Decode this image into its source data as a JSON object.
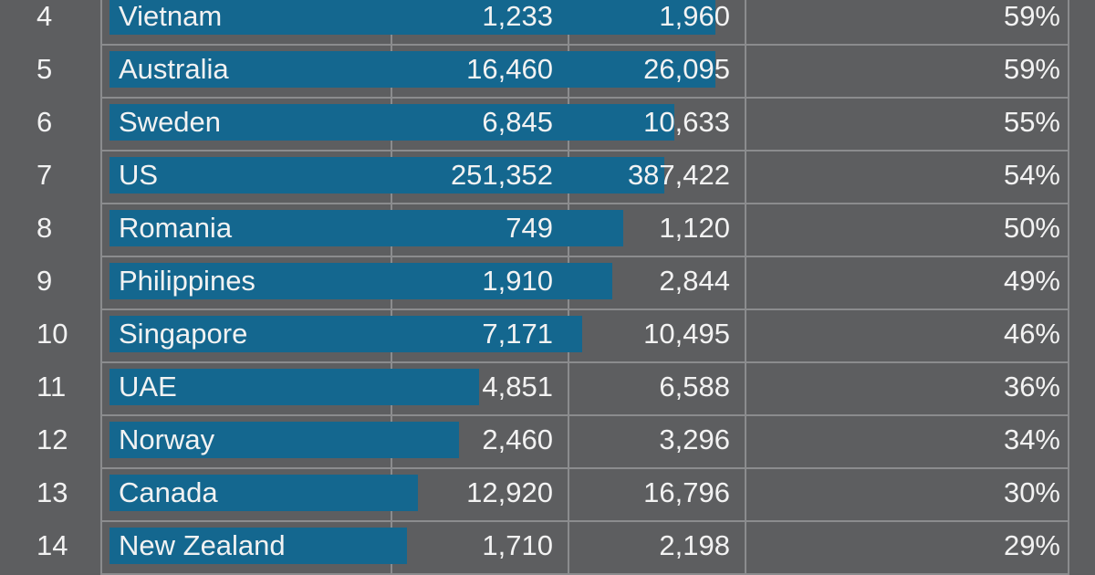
{
  "colors": {
    "background": "#5d5e60",
    "bar": "#14678f",
    "grid": "#8b8c8e",
    "text": "#f2f2f2"
  },
  "chart_data": {
    "type": "table",
    "bar_max_percent": 100,
    "rows": [
      {
        "rank": "4",
        "country": "Vietnam",
        "value_1": "1,233",
        "value_2": "1,960",
        "percent": "59%",
        "percent_value": 59
      },
      {
        "rank": "5",
        "country": "Australia",
        "value_1": "16,460",
        "value_2": "26,095",
        "percent": "59%",
        "percent_value": 59
      },
      {
        "rank": "6",
        "country": "Sweden",
        "value_1": "6,845",
        "value_2": "10,633",
        "percent": "55%",
        "percent_value": 55
      },
      {
        "rank": "7",
        "country": "US",
        "value_1": "251,352",
        "value_2": "387,422",
        "percent": "54%",
        "percent_value": 54
      },
      {
        "rank": "8",
        "country": "Romania",
        "value_1": "749",
        "value_2": "1,120",
        "percent": "50%",
        "percent_value": 50
      },
      {
        "rank": "9",
        "country": "Philippines",
        "value_1": "1,910",
        "value_2": "2,844",
        "percent": "49%",
        "percent_value": 49
      },
      {
        "rank": "10",
        "country": "Singapore",
        "value_1": "7,171",
        "value_2": "10,495",
        "percent": "46%",
        "percent_value": 46
      },
      {
        "rank": "11",
        "country": "UAE",
        "value_1": "4,851",
        "value_2": "6,588",
        "percent": "36%",
        "percent_value": 36
      },
      {
        "rank": "12",
        "country": "Norway",
        "value_1": "2,460",
        "value_2": "3,296",
        "percent": "34%",
        "percent_value": 34
      },
      {
        "rank": "13",
        "country": "Canada",
        "value_1": "12,920",
        "value_2": "16,796",
        "percent": "30%",
        "percent_value": 30
      },
      {
        "rank": "14",
        "country": "New Zealand",
        "value_1": "1,710",
        "value_2": "2,198",
        "percent": "29%",
        "percent_value": 29
      }
    ]
  }
}
